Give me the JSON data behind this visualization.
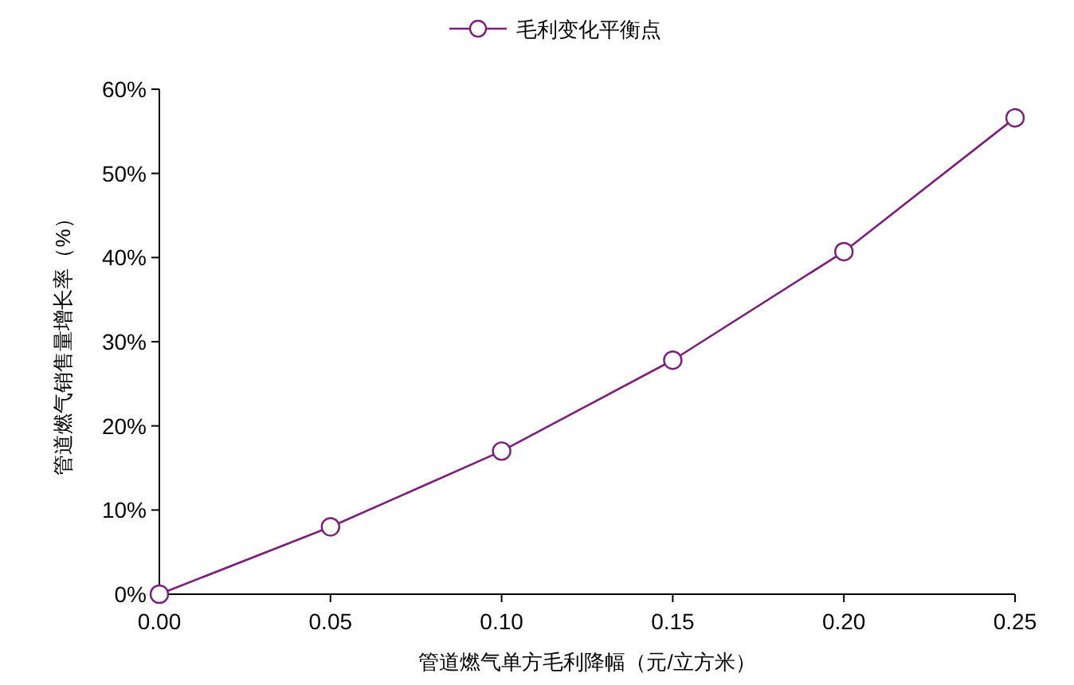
{
  "chart_data": {
    "type": "line",
    "xlabel": "管道燃气单方毛利降幅（元/立方米）",
    "ylabel": "管道燃气销售量增长率（%）",
    "x": [
      0,
      0.05,
      0.1,
      0.15,
      0.2,
      0.25
    ],
    "series": [
      {
        "name": "毛利变化平衡点",
        "color": "#7b1f7b",
        "values": [
          0,
          8.0,
          17.0,
          27.8,
          40.7,
          56.6
        ]
      }
    ],
    "xlim": [
      0,
      0.25
    ],
    "xticks": [
      {
        "value": 0,
        "label": "0.00"
      },
      {
        "value": 0.05,
        "label": "0.05"
      },
      {
        "value": 0.1,
        "label": "0.10"
      },
      {
        "value": 0.15,
        "label": "0.15"
      },
      {
        "value": 0.2,
        "label": "0.20"
      },
      {
        "value": 0.25,
        "label": "0.25"
      }
    ],
    "ylim": [
      0,
      60
    ],
    "yticks": [
      {
        "value": 0,
        "label": "0%"
      },
      {
        "value": 10,
        "label": "10%"
      },
      {
        "value": 20,
        "label": "20%"
      },
      {
        "value": 30,
        "label": "30%"
      },
      {
        "value": 40,
        "label": "40%"
      },
      {
        "value": 50,
        "label": "50%"
      },
      {
        "value": 60,
        "label": "60%"
      }
    ],
    "grid": false,
    "legend": "top",
    "marker": "circle",
    "line_style": "solid"
  }
}
